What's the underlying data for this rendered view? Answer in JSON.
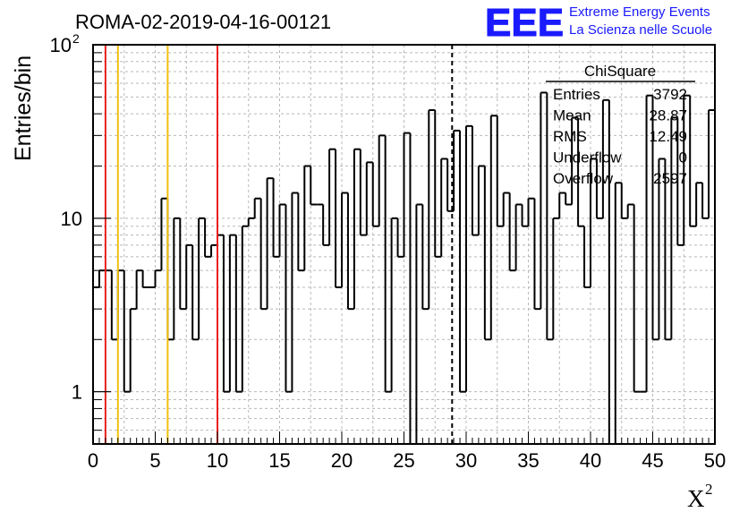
{
  "chart_data": {
    "type": "bar",
    "title": "ROMA-02-2019-04-16-00121",
    "xlabel": "X",
    "xlabel_sup": "2",
    "ylabel": "Entries/bin",
    "xlim": [
      0,
      50
    ],
    "ylim": [
      0.5,
      100
    ],
    "yscale": "log",
    "bin_width": 0.5,
    "grid": true,
    "x_ticks": [
      "0",
      "5",
      "10",
      "15",
      "20",
      "25",
      "30",
      "35",
      "40",
      "45",
      "50"
    ],
    "y_ticks": [
      {
        "base": "1",
        "exp": ""
      },
      {
        "base": "10",
        "exp": ""
      },
      {
        "base": "10",
        "exp": "2"
      }
    ],
    "values": [
      4,
      5,
      5,
      2,
      5,
      1,
      3,
      5,
      4,
      4,
      5,
      13,
      2,
      10,
      3,
      7,
      2,
      10,
      6,
      7,
      8,
      1,
      8,
      1,
      9,
      10,
      13,
      3,
      17,
      6,
      12,
      1,
      14,
      5,
      20,
      12,
      12,
      7,
      25,
      4,
      14,
      3,
      25,
      8,
      21,
      9,
      30,
      1,
      10,
      6,
      31,
      0.1,
      12,
      3,
      42,
      6,
      22,
      11,
      32,
      1,
      34,
      8,
      20,
      2,
      39,
      9,
      14,
      5,
      12,
      9,
      13,
      3,
      53,
      2,
      10,
      14,
      12,
      38,
      9,
      4,
      22,
      10,
      48,
      0.1,
      16,
      10,
      12,
      1,
      1,
      51,
      2,
      22,
      2,
      38,
      7,
      51,
      9,
      16,
      10,
      42
    ],
    "vlines": [
      {
        "x": 1,
        "color": "#e8201f",
        "style": "solid"
      },
      {
        "x": 2,
        "color": "#f2bf0d",
        "style": "solid"
      },
      {
        "x": 6,
        "color": "#f2bf0d",
        "style": "solid"
      },
      {
        "x": 10,
        "color": "#e8201f",
        "style": "solid"
      },
      {
        "x": 28.87,
        "color": "#000000",
        "style": "dashed"
      }
    ],
    "stats_box": {
      "title": "ChiSquare",
      "rows": [
        {
          "label": "Entries",
          "value": "3792"
        },
        {
          "label": "Mean",
          "value": "28.87"
        },
        {
          "label": "RMS",
          "value": "12.49"
        },
        {
          "label": "Underflow",
          "value": "0"
        },
        {
          "label": "Overflow",
          "value": "2597"
        }
      ]
    }
  },
  "logo": {
    "text": "EEE",
    "line1": "Extreme Energy Events",
    "line2": "La Scienza nelle Scuole",
    "color": "#1a1aff"
  }
}
